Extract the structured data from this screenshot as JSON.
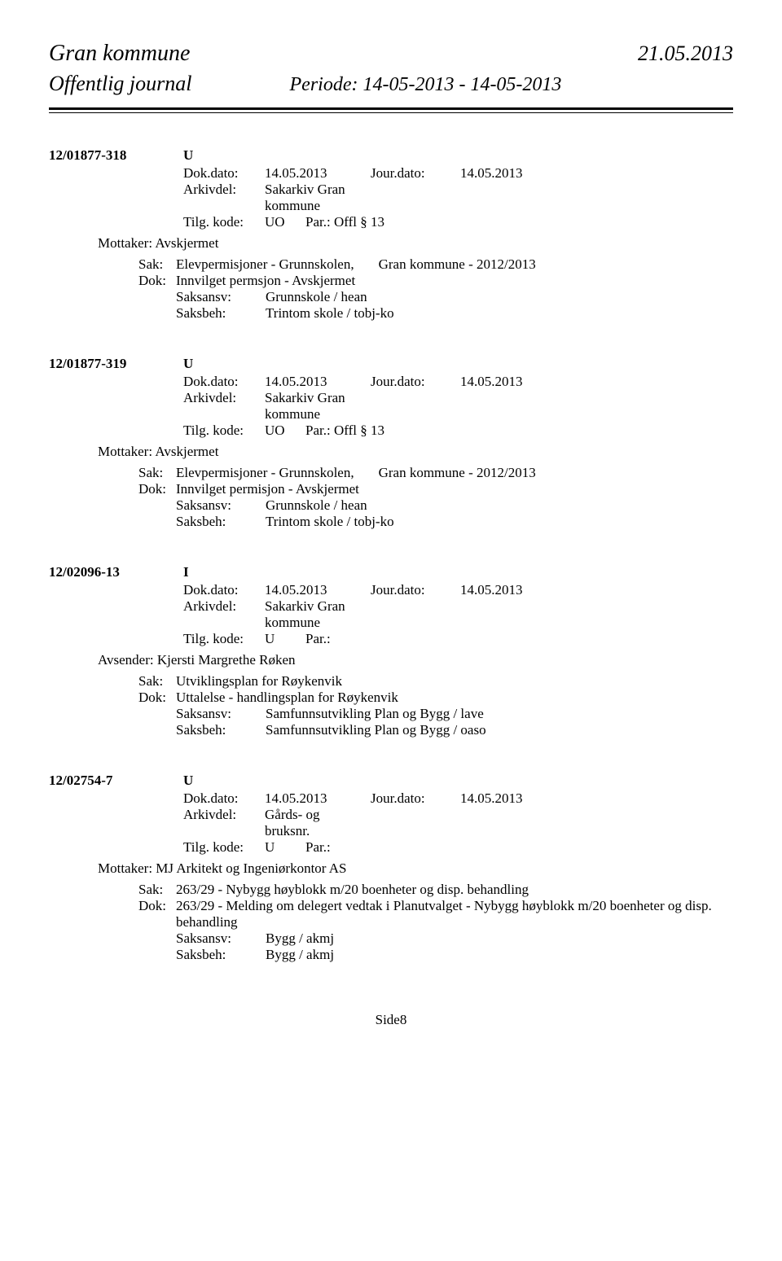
{
  "header": {
    "org": "Gran kommune",
    "date": "21.05.2013",
    "journal_title": "Offentlig journal",
    "period": "Periode: 14-05-2013 - 14-05-2013"
  },
  "entries": [
    {
      "case_id": "12/01877-318",
      "type": "U",
      "dokdato_label": "Dok.dato:",
      "dokdato": "14.05.2013",
      "jourdato_label": "Jour.dato:",
      "jourdato": "14.05.2013",
      "arkivdel_label": "Arkivdel:",
      "arkivdel": "Sakarkiv Gran kommune",
      "tilg_label": "Tilg. kode:",
      "tilg_code": "UO",
      "tilg_par": "Par.:  Offl § 13",
      "party_label": "Mottaker:",
      "party_value": "Avskjermet",
      "sak_prefix": "Sak:",
      "sak_title": "Elevpermisjoner - Grunnskolen,",
      "sak_extra": "Gran kommune - 2012/2013",
      "dok_prefix": "Dok:",
      "dok_title": "Innvilget permsjon - Avskjermet",
      "saksansv_label": "Saksansv:",
      "saksansv": "Grunnskole / hean",
      "saksbeh_label": "Saksbeh:",
      "saksbeh": "Trintom skole / tobj-ko"
    },
    {
      "case_id": "12/01877-319",
      "type": "U",
      "dokdato_label": "Dok.dato:",
      "dokdato": "14.05.2013",
      "jourdato_label": "Jour.dato:",
      "jourdato": "14.05.2013",
      "arkivdel_label": "Arkivdel:",
      "arkivdel": "Sakarkiv Gran kommune",
      "tilg_label": "Tilg. kode:",
      "tilg_code": "UO",
      "tilg_par": "Par.:  Offl § 13",
      "party_label": "Mottaker:",
      "party_value": "Avskjermet",
      "sak_prefix": "Sak:",
      "sak_title": "Elevpermisjoner - Grunnskolen,",
      "sak_extra": "Gran kommune - 2012/2013",
      "dok_prefix": "Dok:",
      "dok_title": "Innvilget permisjon - Avskjermet",
      "saksansv_label": "Saksansv:",
      "saksansv": "Grunnskole / hean",
      "saksbeh_label": "Saksbeh:",
      "saksbeh": "Trintom skole / tobj-ko"
    },
    {
      "case_id": "12/02096-13",
      "type": "I",
      "dokdato_label": "Dok.dato:",
      "dokdato": "14.05.2013",
      "jourdato_label": "Jour.dato:",
      "jourdato": "14.05.2013",
      "arkivdel_label": "Arkivdel:",
      "arkivdel": "Sakarkiv Gran kommune",
      "tilg_label": "Tilg. kode:",
      "tilg_code": "U",
      "tilg_par": "Par.:",
      "party_label": "Avsender:",
      "party_value": "Kjersti Margrethe Røken",
      "sak_prefix": "Sak:",
      "sak_title": "Utviklingsplan for Røykenvik",
      "sak_extra": "",
      "dok_prefix": "Dok:",
      "dok_title": "Uttalelse - handlingsplan for Røykenvik",
      "saksansv_label": "Saksansv:",
      "saksansv": "Samfunnsutvikling Plan og Bygg / lave",
      "saksbeh_label": "Saksbeh:",
      "saksbeh": "Samfunnsutvikling Plan og Bygg / oaso"
    },
    {
      "case_id": "12/02754-7",
      "type": "U",
      "dokdato_label": "Dok.dato:",
      "dokdato": "14.05.2013",
      "jourdato_label": "Jour.dato:",
      "jourdato": "14.05.2013",
      "arkivdel_label": "Arkivdel:",
      "arkivdel": "Gårds- og bruksnr.",
      "tilg_label": "Tilg. kode:",
      "tilg_code": "U",
      "tilg_par": "Par.:",
      "party_label": "Mottaker:",
      "party_value": "MJ Arkitekt og Ingeniørkontor AS",
      "sak_prefix": "Sak:",
      "sak_title": "263/29 - Nybygg høyblokk m/20 boenheter og disp. behandling",
      "sak_extra": "",
      "dok_prefix": "Dok:",
      "dok_title": "263/29 - Melding om delegert vedtak i Planutvalget - Nybygg høyblokk m/20 boenheter og disp. behandling",
      "saksansv_label": "Saksansv:",
      "saksansv": "Bygg / akmj",
      "saksbeh_label": "Saksbeh:",
      "saksbeh": "Bygg / akmj"
    }
  ],
  "footer": "Side8"
}
